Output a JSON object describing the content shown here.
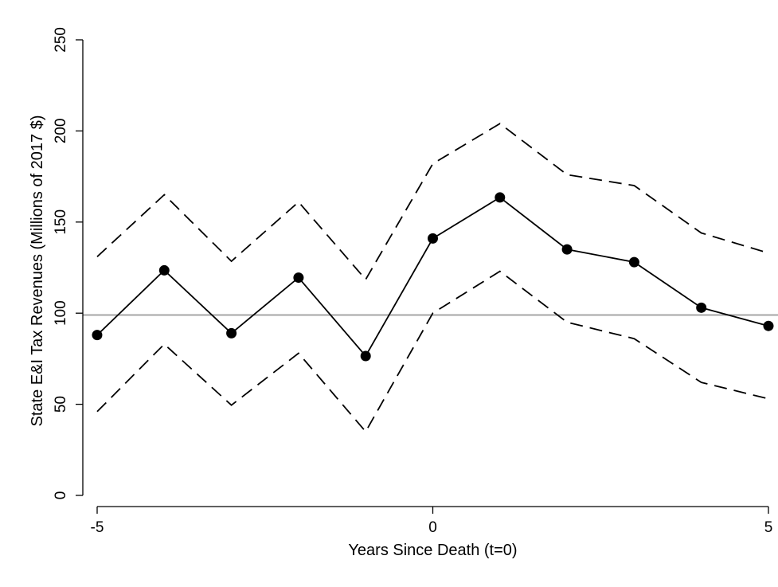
{
  "chart_data": {
    "type": "line",
    "xlabel": "Years Since Death (t=0)",
    "ylabel": "State E&I Tax Revenues (Millions of 2017 $)",
    "xlim": [
      -5,
      5
    ],
    "ylim": [
      0,
      250
    ],
    "x_ticks": [
      -5,
      0,
      5
    ],
    "y_ticks": [
      0,
      50,
      100,
      150,
      200,
      250
    ],
    "reference_line": {
      "y": 99,
      "color": "#a6a6a6"
    },
    "x": [
      -5,
      -4,
      -3,
      -2,
      -1,
      0,
      1,
      2,
      3,
      4,
      5
    ],
    "series": [
      {
        "role": "estimate",
        "style": "solid",
        "markers": true,
        "values": [
          88,
          123.5,
          89,
          119.5,
          76.5,
          141,
          163.5,
          135,
          128,
          103,
          93
        ]
      },
      {
        "role": "upper-ci",
        "style": "dashed",
        "markers": false,
        "values": [
          131,
          165,
          128.5,
          161,
          118.5,
          182,
          204,
          176,
          170,
          144,
          133
        ]
      },
      {
        "role": "lower-ci",
        "style": "dashed",
        "markers": false,
        "values": [
          46,
          83,
          49.5,
          78,
          35,
          100,
          123,
          95,
          86,
          62,
          53
        ]
      }
    ],
    "grid": false,
    "legend": "none",
    "colors": {
      "line": "#000000",
      "reference": "#a6a6a6",
      "axis": "#000000"
    }
  }
}
